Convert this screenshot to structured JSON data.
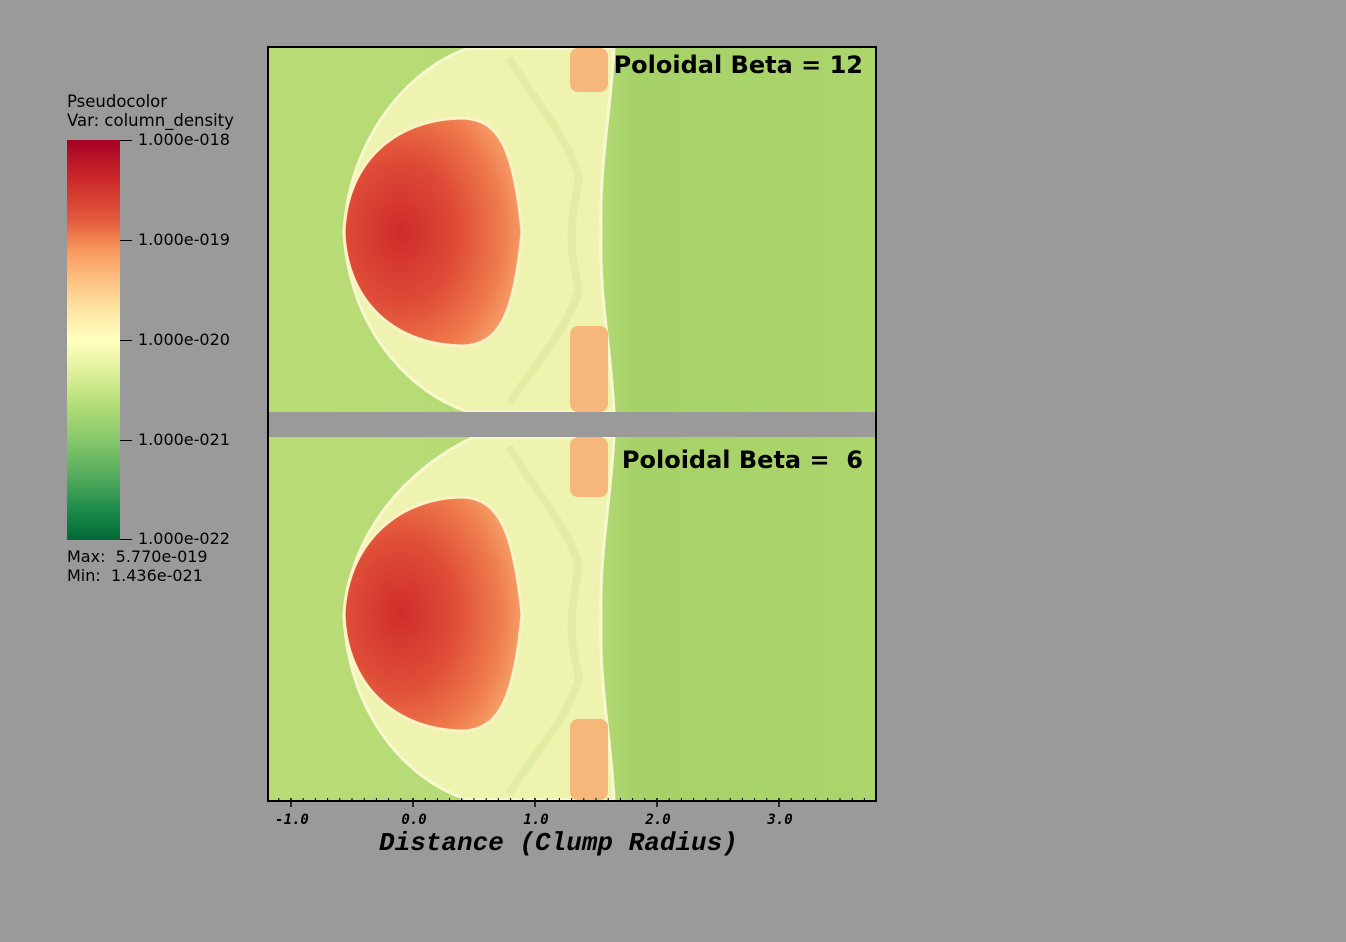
{
  "legend": {
    "title_line1": "Pseudocolor",
    "title_line2": "Var: column_density",
    "ticks": [
      "1.000e-018",
      "1.000e-019",
      "1.000e-020",
      "1.000e-021",
      "1.000e-022"
    ],
    "max": "Max:  5.770e-019",
    "min": "Min:  1.436e-021",
    "colors": [
      "#a50026",
      "#f7945a",
      "#ffffbf",
      "#86c76a",
      "#006837"
    ]
  },
  "panels": [
    {
      "label": "Poloidal Beta = 12"
    },
    {
      "label": "Poloidal Beta =  6"
    }
  ],
  "axis": {
    "xlabel": "Distance (Clump Radius)",
    "tick_labels": [
      "-1.0",
      "0.0",
      "1.0",
      "2.0",
      "3.0"
    ]
  }
}
